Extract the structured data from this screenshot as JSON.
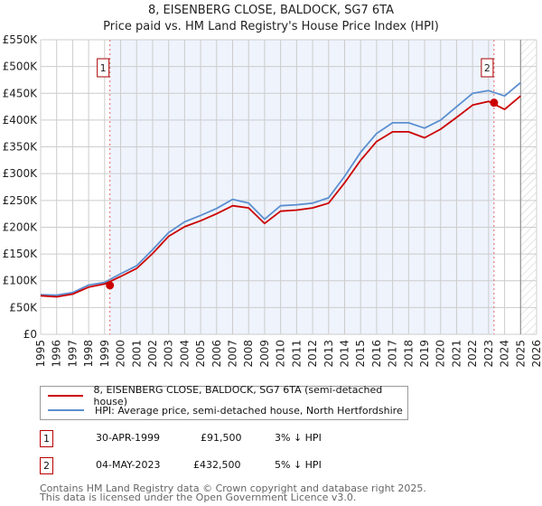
{
  "title": "8, EISENBERG CLOSE, BALDOCK, SG7 6TA",
  "subtitle": "Price paid vs. HM Land Registry's House Price Index (HPI)",
  "chart_data": {
    "type": "line",
    "title": "8, EISENBERG CLOSE, BALDOCK, SG7 6TA",
    "subtitle": "Price paid vs. HM Land Registry's House Price Index (HPI)",
    "xlabel": "",
    "ylabel": "",
    "xlim": [
      1995,
      2026
    ],
    "ylim": [
      0,
      550000
    ],
    "grid": true,
    "x_ticks": [
      "1995",
      "1996",
      "1997",
      "1998",
      "1999",
      "2000",
      "2001",
      "2002",
      "2003",
      "2004",
      "2005",
      "2006",
      "2007",
      "2008",
      "2009",
      "2010",
      "2011",
      "2012",
      "2013",
      "2014",
      "2015",
      "2016",
      "2017",
      "2018",
      "2019",
      "2020",
      "2021",
      "2022",
      "2023",
      "2024",
      "2025",
      "2026"
    ],
    "y_ticks": [
      "£0",
      "£50K",
      "£100K",
      "£150K",
      "£200K",
      "£250K",
      "£300K",
      "£350K",
      "£400K",
      "£450K",
      "£500K",
      "£550K"
    ],
    "x": [
      1995.0,
      1996.0,
      1997.0,
      1998.0,
      1999.0,
      2000.0,
      2001.0,
      2002.0,
      2003.0,
      2004.0,
      2005.0,
      2006.0,
      2007.0,
      2008.0,
      2009.0,
      2010.0,
      2011.0,
      2012.0,
      2013.0,
      2014.0,
      2015.0,
      2016.0,
      2017.0,
      2018.0,
      2019.0,
      2020.0,
      2021.0,
      2022.0,
      2023.0,
      2024.0,
      2025.0
    ],
    "series": [
      {
        "name": "8, EISENBERG CLOSE, BALDOCK, SG7 6TA (semi-detached house)",
        "color": "#cc0000",
        "values": [
          72000,
          70000,
          75000,
          88000,
          94000,
          108000,
          123000,
          151000,
          183000,
          201000,
          212000,
          225000,
          240000,
          236000,
          207000,
          230000,
          232000,
          236000,
          245000,
          283000,
          325000,
          360000,
          378000,
          378000,
          367000,
          383000,
          405000,
          428000,
          435000,
          420000,
          445000
        ]
      },
      {
        "name": "HPI: Average price, semi-detached house, North Hertfordshire",
        "color": "#5b8fd0",
        "values": [
          74000,
          73000,
          78000,
          92000,
          97000,
          113000,
          128000,
          158000,
          190000,
          210000,
          222000,
          235000,
          252000,
          245000,
          215000,
          240000,
          242000,
          245000,
          255000,
          295000,
          340000,
          375000,
          395000,
          395000,
          385000,
          400000,
          425000,
          450000,
          455000,
          445000,
          470000
        ]
      }
    ],
    "annotations": [
      {
        "label": "1",
        "x": 1999.33,
        "value": 91500
      },
      {
        "label": "2",
        "x": 2023.34,
        "value": 432500
      }
    ],
    "shaded_regions": [
      {
        "from": 1999.33,
        "to": 2023.34,
        "color": "#eef3fc"
      }
    ],
    "hatched_region": {
      "from": 2025.0,
      "to": 2026.0
    },
    "legend_position": "below"
  },
  "legend": {
    "items": [
      {
        "label": "8, EISENBERG CLOSE, BALDOCK, SG7 6TA (semi-detached house)",
        "color": "#cc0000"
      },
      {
        "label": "HPI: Average price, semi-detached house, North Hertfordshire",
        "color": "#5b8fd0"
      }
    ]
  },
  "sales": [
    {
      "num": "1",
      "date": "30-APR-1999",
      "price": "£91,500",
      "hpi": "3% ↓ HPI"
    },
    {
      "num": "2",
      "date": "04-MAY-2023",
      "price": "£432,500",
      "hpi": "5% ↓ HPI"
    }
  ],
  "footer": {
    "line1": "Contains HM Land Registry data © Crown copyright and database right 2025.",
    "line2": "This data is licensed under the Open Government Licence v3.0."
  }
}
